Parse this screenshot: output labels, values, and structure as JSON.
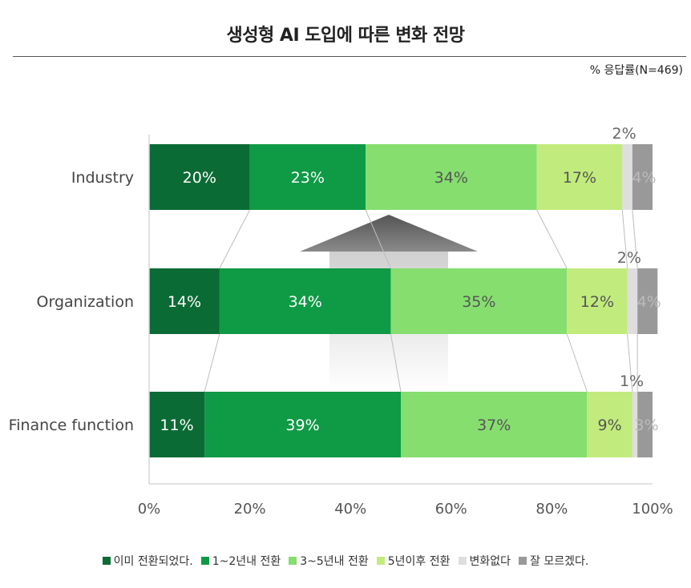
{
  "title": "생성형 AI 도입에 따른 변화 전망",
  "unit_note": "% 응답률(N=469)",
  "chart_data": {
    "type": "bar",
    "orientation": "horizontal",
    "stacked": true,
    "categories": [
      "Industry",
      "Organization",
      "Finance function"
    ],
    "series": [
      {
        "name": "이미 전환되었다.",
        "color": "#0b6b35",
        "values": [
          20,
          14,
          11
        ]
      },
      {
        "name": "1~2년내 전환",
        "color": "#0f9a45",
        "values": [
          23,
          34,
          39
        ]
      },
      {
        "name": "3~5년내 전환",
        "color": "#86de6f",
        "values": [
          34,
          35,
          37
        ]
      },
      {
        "name": "5년이후 전환",
        "color": "#c2eb7d",
        "values": [
          17,
          12,
          9
        ]
      },
      {
        "name": "변화없다",
        "color": "#dedede",
        "values": [
          2,
          2,
          1
        ]
      },
      {
        "name": "잘 모르겠다.",
        "color": "#999999",
        "values": [
          4,
          4,
          3
        ]
      }
    ],
    "value_labels": [
      [
        "20%",
        "23%",
        "34%",
        "17%",
        "2%",
        "4%"
      ],
      [
        "14%",
        "34%",
        "35%",
        "12%",
        "2%",
        "4%"
      ],
      [
        "11%",
        "39%",
        "37%",
        "9%",
        "1%",
        "3%"
      ]
    ],
    "xlim": [
      0,
      100
    ],
    "xticks": [
      "0%",
      "20%",
      "40%",
      "60%",
      "80%",
      "100%"
    ],
    "legend_position": "bottom",
    "arrow_direction": "up"
  }
}
